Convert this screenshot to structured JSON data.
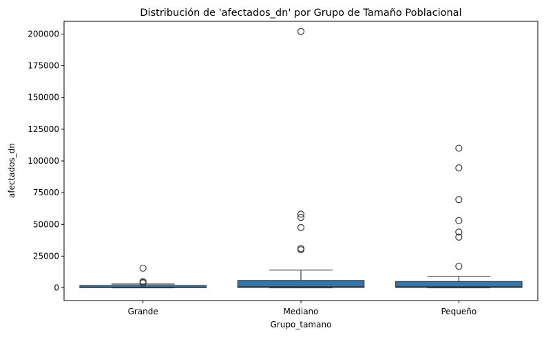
{
  "chart_data": {
    "type": "box",
    "title": "Distribución de 'afectados_dn' por Grupo de Tamaño Poblacional",
    "xlabel": "Grupo_tamano",
    "ylabel": "afectados_dn",
    "ylim": [
      -10000,
      210000
    ],
    "yticks": [
      0,
      25000,
      50000,
      75000,
      100000,
      125000,
      150000,
      175000,
      200000
    ],
    "categories": [
      "Grande",
      "Mediano",
      "Pequeño"
    ],
    "box_color": "#2e77b0",
    "line_color": "#3a3a3a",
    "grid": false,
    "boxes": [
      {
        "category": "Grande",
        "min": 0,
        "q1": 200,
        "median": 600,
        "q3": 1500,
        "max": 3000,
        "outliers": [
          15500,
          5000,
          4200,
          3900
        ]
      },
      {
        "category": "Mediano",
        "min": 0,
        "q1": 300,
        "median": 1000,
        "q3": 5800,
        "max": 14000,
        "outliers": [
          202000,
          58000,
          55500,
          47500,
          31000,
          30000
        ]
      },
      {
        "category": "Pequeño",
        "min": 0,
        "q1": 300,
        "median": 1000,
        "q3": 5000,
        "max": 9000,
        "outliers": [
          110000,
          94500,
          69500,
          53000,
          44000,
          40000,
          17000
        ]
      }
    ]
  }
}
